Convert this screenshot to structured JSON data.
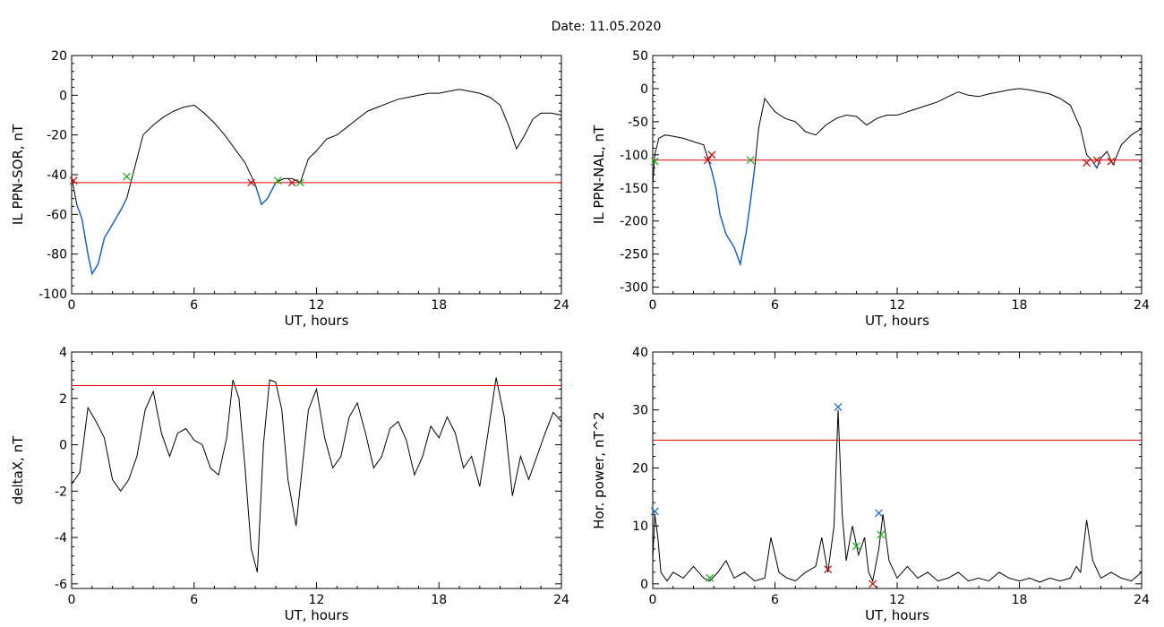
{
  "title": "Date:  11.05.2020",
  "colors": {
    "trace": "#000000",
    "threshold": "#e00000",
    "below": "#1060d0",
    "marker_red": "#d00000",
    "marker_green": "#10b010",
    "marker_blue": "#1060d0"
  },
  "chart_data": [
    {
      "type": "line",
      "ylabel": "IL PPN-SOR, nT",
      "xlabel": "UT, hours",
      "xlim": [
        0,
        24
      ],
      "ylim": [
        -100,
        20
      ],
      "xticks": [
        0,
        6,
        12,
        18,
        24
      ],
      "yticks": [
        -100,
        -80,
        -60,
        -40,
        -20,
        0,
        20
      ],
      "xtick_labels": [
        "0",
        "6",
        "12",
        "18",
        "24"
      ],
      "ytick_labels": [
        "-100",
        "-80",
        "-60",
        "-40",
        "-20",
        "0",
        "20"
      ],
      "threshold": -44,
      "x": [
        0,
        0.25,
        0.5,
        0.8,
        1.0,
        1.3,
        1.6,
        2.0,
        2.4,
        2.7,
        3.0,
        3.5,
        4.0,
        4.5,
        5.0,
        5.5,
        6.0,
        6.5,
        7.0,
        7.5,
        8.0,
        8.5,
        9.0,
        9.3,
        9.6,
        10.0,
        10.4,
        10.8,
        11.2,
        11.6,
        12.0,
        12.5,
        13.0,
        13.5,
        14.0,
        14.5,
        15.0,
        15.5,
        16.0,
        16.5,
        17.0,
        17.5,
        18.0,
        18.5,
        19.0,
        19.5,
        20.0,
        20.5,
        21.0,
        21.4,
        21.8,
        22.2,
        22.6,
        23.0,
        23.5,
        24.0
      ],
      "y": [
        -41,
        -55,
        -62,
        -80,
        -90,
        -85,
        -72,
        -65,
        -58,
        -52,
        -40,
        -20,
        -15,
        -11,
        -8,
        -6,
        -5,
        -9,
        -14,
        -20,
        -27,
        -34,
        -45,
        -55,
        -52,
        -44,
        -42,
        -42,
        -44,
        -32,
        -28,
        -22,
        -20,
        -16,
        -12,
        -8,
        -6,
        -4,
        -2,
        -1,
        0,
        1,
        1,
        2,
        3,
        2,
        1,
        -1,
        -5,
        -15,
        -27,
        -20,
        -12,
        -9,
        -9,
        -10
      ],
      "markers": [
        {
          "x": 0.1,
          "y": -43,
          "color": "red"
        },
        {
          "x": 2.7,
          "y": -41,
          "color": "green"
        },
        {
          "x": 8.8,
          "y": -44,
          "color": "red"
        },
        {
          "x": 10.1,
          "y": -43,
          "color": "green"
        },
        {
          "x": 10.8,
          "y": -44,
          "color": "red"
        },
        {
          "x": 11.2,
          "y": -44,
          "color": "green"
        }
      ]
    },
    {
      "type": "line",
      "ylabel": "IL PPN-NAL, nT",
      "xlabel": "UT, hours",
      "xlim": [
        0,
        24
      ],
      "ylim": [
        -310,
        50
      ],
      "xticks": [
        0,
        6,
        12,
        18,
        24
      ],
      "yticks": [
        -300,
        -250,
        -200,
        -150,
        -100,
        -50,
        0,
        50
      ],
      "xtick_labels": [
        "0",
        "6",
        "12",
        "18",
        "24"
      ],
      "ytick_labels": [
        "-300",
        "-250",
        "-200",
        "-150",
        "-100",
        "-50",
        "0",
        "50"
      ],
      "threshold": -108,
      "x": [
        0,
        0.1,
        0.3,
        0.6,
        1.0,
        1.5,
        2.0,
        2.5,
        2.75,
        2.9,
        3.1,
        3.3,
        3.6,
        4.0,
        4.3,
        4.6,
        4.8,
        5.0,
        5.2,
        5.5,
        6.0,
        6.5,
        7.0,
        7.5,
        8.0,
        8.5,
        9.0,
        9.5,
        10.0,
        10.5,
        11.0,
        11.5,
        12.0,
        12.5,
        13.0,
        13.5,
        14.0,
        14.5,
        15.0,
        15.5,
        16.0,
        16.5,
        17.0,
        17.5,
        18.0,
        18.5,
        19.0,
        19.5,
        20.0,
        20.5,
        21.0,
        21.3,
        21.6,
        21.8,
        22.0,
        22.3,
        22.6,
        23.0,
        23.5,
        24.0
      ],
      "y": [
        -145,
        -100,
        -75,
        -70,
        -72,
        -75,
        -80,
        -85,
        -110,
        -125,
        -150,
        -190,
        -220,
        -240,
        -265,
        -215,
        -170,
        -120,
        -60,
        -15,
        -35,
        -45,
        -50,
        -65,
        -70,
        -55,
        -45,
        -40,
        -42,
        -55,
        -45,
        -40,
        -40,
        -35,
        -30,
        -25,
        -20,
        -12,
        -5,
        -10,
        -12,
        -8,
        -5,
        -2,
        0,
        -2,
        -5,
        -8,
        -15,
        -25,
        -60,
        -100,
        -110,
        -120,
        -105,
        -95,
        -115,
        -85,
        -70,
        -60
      ],
      "markers": [
        {
          "x": 0.1,
          "y": -110,
          "color": "green"
        },
        {
          "x": 2.7,
          "y": -108,
          "color": "red"
        },
        {
          "x": 2.9,
          "y": -100,
          "color": "red"
        },
        {
          "x": 4.8,
          "y": -108,
          "color": "green"
        },
        {
          "x": 21.3,
          "y": -112,
          "color": "red"
        },
        {
          "x": 21.8,
          "y": -108,
          "color": "red"
        },
        {
          "x": 22.5,
          "y": -110,
          "color": "red"
        }
      ]
    },
    {
      "type": "line",
      "ylabel": "deltaX, nT",
      "xlabel": "UT, hours",
      "xlim": [
        0,
        24
      ],
      "ylim": [
        -6.2,
        4
      ],
      "xticks": [
        0,
        6,
        12,
        18,
        24
      ],
      "yticks": [
        -6,
        -4,
        -2,
        0,
        2,
        4
      ],
      "xtick_labels": [
        "0",
        "6",
        "12",
        "18",
        "24"
      ],
      "ytick_labels": [
        "-6",
        "-4",
        "-2",
        "0",
        "2",
        "4"
      ],
      "threshold": 2.55,
      "x": [
        0,
        0.4,
        0.8,
        1.2,
        1.6,
        2.0,
        2.4,
        2.8,
        3.2,
        3.6,
        4.0,
        4.4,
        4.8,
        5.2,
        5.6,
        6.0,
        6.4,
        6.8,
        7.2,
        7.6,
        7.9,
        8.2,
        8.5,
        8.8,
        9.1,
        9.4,
        9.7,
        10.0,
        10.3,
        10.6,
        11.0,
        11.3,
        11.6,
        12.0,
        12.4,
        12.8,
        13.2,
        13.6,
        14.0,
        14.4,
        14.8,
        15.2,
        15.6,
        16.0,
        16.4,
        16.8,
        17.2,
        17.6,
        18.0,
        18.4,
        18.8,
        19.2,
        19.6,
        20.0,
        20.4,
        20.8,
        21.2,
        21.6,
        22.0,
        22.4,
        22.8,
        23.2,
        23.6,
        24.0
      ],
      "y": [
        -1.7,
        -1.2,
        1.6,
        1.0,
        0.3,
        -1.5,
        -2.0,
        -1.5,
        -0.5,
        1.5,
        2.3,
        0.5,
        -0.5,
        0.5,
        0.7,
        0.2,
        0.0,
        -1.0,
        -1.3,
        0.3,
        2.8,
        2.0,
        -1.0,
        -4.5,
        -5.5,
        0.0,
        2.8,
        2.7,
        1.5,
        -1.5,
        -3.5,
        -1.0,
        1.5,
        2.4,
        0.3,
        -1.0,
        -0.5,
        1.2,
        1.8,
        0.5,
        -1.0,
        -0.5,
        0.7,
        1.0,
        0.2,
        -1.3,
        -0.5,
        0.8,
        0.3,
        1.2,
        0.5,
        -1.0,
        -0.5,
        -1.8,
        0.5,
        2.9,
        1.2,
        -2.2,
        -0.5,
        -1.5,
        -0.5,
        0.5,
        1.4,
        1.0
      ]
    },
    {
      "type": "line",
      "ylabel": "Hor. power, nT^2",
      "xlabel": "UT, hours",
      "xlim": [
        0,
        24
      ],
      "ylim": [
        -0.8,
        40
      ],
      "xticks": [
        0,
        6,
        12,
        18,
        24
      ],
      "yticks": [
        0,
        10,
        20,
        30,
        40
      ],
      "xtick_labels": [
        "0",
        "6",
        "12",
        "18",
        "24"
      ],
      "ytick_labels": [
        "0",
        "10",
        "20",
        "30",
        "40"
      ],
      "threshold": 24.8,
      "x": [
        0,
        0.1,
        0.25,
        0.4,
        0.7,
        1.0,
        1.5,
        2.0,
        2.5,
        2.8,
        3.2,
        3.6,
        4.0,
        4.5,
        5.0,
        5.5,
        5.8,
        6.2,
        6.6,
        7.0,
        7.5,
        8.0,
        8.3,
        8.6,
        8.9,
        9.1,
        9.3,
        9.5,
        9.8,
        10.1,
        10.4,
        10.6,
        10.8,
        11.1,
        11.3,
        11.6,
        12.0,
        12.5,
        13.0,
        13.5,
        14.0,
        14.5,
        15.0,
        15.5,
        16.0,
        16.5,
        17.0,
        17.5,
        18.0,
        18.5,
        19.0,
        19.5,
        20.0,
        20.5,
        20.8,
        21.0,
        21.3,
        21.6,
        22.0,
        22.5,
        23.0,
        23.5,
        24.0
      ],
      "y": [
        4,
        12,
        8,
        2,
        0.5,
        2,
        1,
        3,
        1,
        0.5,
        2,
        4,
        1,
        2,
        0.5,
        1,
        8,
        2,
        1,
        0.5,
        2,
        3,
        8,
        2,
        10,
        30,
        12,
        4,
        10,
        5,
        8,
        2,
        0.5,
        6,
        12,
        4,
        1,
        3,
        1,
        2,
        0.5,
        1,
        2,
        0.5,
        1,
        0.5,
        2,
        1,
        0.5,
        1,
        0.3,
        1,
        0.5,
        1,
        3,
        2,
        11,
        4,
        1,
        2,
        1,
        0.5,
        2
      ],
      "markers": [
        {
          "x": 0.1,
          "y": 12.5,
          "color": "blue"
        },
        {
          "x": 2.8,
          "y": 1.0,
          "color": "green"
        },
        {
          "x": 8.6,
          "y": 2.5,
          "color": "red"
        },
        {
          "x": 9.1,
          "y": 30.5,
          "color": "blue"
        },
        {
          "x": 10.0,
          "y": 6.5,
          "color": "green"
        },
        {
          "x": 10.8,
          "y": 0.0,
          "color": "red"
        },
        {
          "x": 11.1,
          "y": 12.2,
          "color": "blue"
        },
        {
          "x": 11.2,
          "y": 8.5,
          "color": "green"
        }
      ]
    }
  ]
}
